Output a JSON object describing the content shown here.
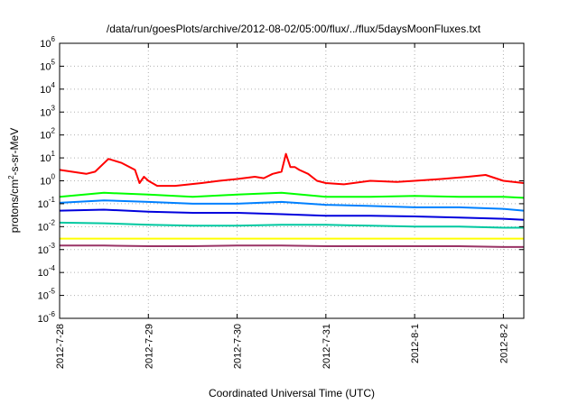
{
  "chart_data": {
    "type": "line",
    "title": "/data/run/goesPlots/archive/2012-08-02/05:00/flux/../flux/5daysMoonFluxes.txt",
    "xlabel": "Coordinated Universal Time (UTC)",
    "ylabel_parts": [
      "protons/cm",
      "2",
      "-s-sr-MeV"
    ],
    "y_scale": "log",
    "ylim": [
      1e-06,
      1000000.0
    ],
    "xlim": [
      0,
      5.23
    ],
    "grid": true,
    "x_ticks": [
      {
        "value": 0,
        "label": "2012-7-28"
      },
      {
        "value": 1,
        "label": "2012-7-29"
      },
      {
        "value": 2,
        "label": "2012-7-30"
      },
      {
        "value": 3,
        "label": "2012-7-31"
      },
      {
        "value": 4,
        "label": "2012-8-1"
      },
      {
        "value": 5,
        "label": "2012-8-2"
      }
    ],
    "y_ticks": [
      {
        "value": -6,
        "base": "10",
        "exp": "-6"
      },
      {
        "value": -5,
        "base": "10",
        "exp": "-5"
      },
      {
        "value": -4,
        "base": "10",
        "exp": "-4"
      },
      {
        "value": -3,
        "base": "10",
        "exp": "-3"
      },
      {
        "value": -2,
        "base": "10",
        "exp": "-2"
      },
      {
        "value": -1,
        "base": "10",
        "exp": "-1"
      },
      {
        "value": 0,
        "base": "10",
        "exp": "0"
      },
      {
        "value": 1,
        "base": "10",
        "exp": "1"
      },
      {
        "value": 2,
        "base": "10",
        "exp": "2"
      },
      {
        "value": 3,
        "base": "10",
        "exp": "3"
      },
      {
        "value": 4,
        "base": "10",
        "exp": "4"
      },
      {
        "value": 5,
        "base": "10",
        "exp": "5"
      },
      {
        "value": 6,
        "base": "10",
        "exp": "6"
      }
    ],
    "series": [
      {
        "color": "#ff0000",
        "x": [
          0,
          0.3,
          0.4,
          0.55,
          0.7,
          0.85,
          0.9,
          0.95,
          1.0,
          1.1,
          1.3,
          1.6,
          1.8,
          2.0,
          2.2,
          2.3,
          2.4,
          2.5,
          2.55,
          2.6,
          2.65,
          2.7,
          2.8,
          2.9,
          3.0,
          3.2,
          3.5,
          3.8,
          4.0,
          4.3,
          4.6,
          4.8,
          5.0,
          5.23
        ],
        "y": [
          3,
          2,
          2.5,
          9,
          6,
          3,
          0.8,
          1.5,
          1,
          0.6,
          0.6,
          0.8,
          1.0,
          1.2,
          1.5,
          1.3,
          2,
          2.5,
          15,
          4,
          4,
          3,
          2,
          1,
          0.8,
          0.7,
          1.0,
          0.9,
          1.0,
          1.2,
          1.5,
          1.8,
          1.0,
          0.8
        ]
      },
      {
        "color": "#00ff00",
        "x": [
          0,
          0.5,
          1.0,
          1.5,
          2.0,
          2.5,
          3.0,
          3.5,
          4.0,
          4.5,
          5.0,
          5.23
        ],
        "y": [
          0.2,
          0.3,
          0.25,
          0.2,
          0.25,
          0.3,
          0.2,
          0.2,
          0.22,
          0.2,
          0.2,
          0.18
        ]
      },
      {
        "color": "#0080ff",
        "x": [
          0,
          0.5,
          1.0,
          1.5,
          2.0,
          2.5,
          3.0,
          3.5,
          4.0,
          4.5,
          5.0,
          5.23
        ],
        "y": [
          0.11,
          0.14,
          0.12,
          0.1,
          0.1,
          0.12,
          0.09,
          0.08,
          0.07,
          0.07,
          0.06,
          0.05
        ]
      },
      {
        "color": "#0000dd",
        "x": [
          0,
          0.5,
          1.0,
          1.5,
          2.0,
          2.5,
          3.0,
          3.5,
          4.0,
          4.5,
          5.0,
          5.23
        ],
        "y": [
          0.05,
          0.055,
          0.045,
          0.04,
          0.04,
          0.035,
          0.03,
          0.03,
          0.028,
          0.025,
          0.022,
          0.02
        ]
      },
      {
        "color": "#00c8a0",
        "x": [
          0,
          0.5,
          1.0,
          1.5,
          2.0,
          2.5,
          3.0,
          3.5,
          4.0,
          4.5,
          5.0,
          5.23
        ],
        "y": [
          0.015,
          0.014,
          0.012,
          0.011,
          0.011,
          0.012,
          0.012,
          0.011,
          0.01,
          0.01,
          0.009,
          0.009
        ]
      },
      {
        "color": "#ffff00",
        "x": [
          0,
          0.5,
          1.0,
          1.5,
          2.0,
          2.5,
          3.0,
          3.5,
          4.0,
          4.5,
          5.0,
          5.23
        ],
        "y": [
          0.003,
          0.003,
          0.003,
          0.003,
          0.003,
          0.003,
          0.003,
          0.003,
          0.003,
          0.003,
          0.003,
          0.003
        ]
      },
      {
        "color": "#993366",
        "x": [
          0,
          0.5,
          1.0,
          1.5,
          2.0,
          2.5,
          3.0,
          3.5,
          4.0,
          4.5,
          5.0,
          5.23
        ],
        "y": [
          0.0015,
          0.0015,
          0.0014,
          0.0014,
          0.0015,
          0.0015,
          0.0014,
          0.0014,
          0.0014,
          0.0014,
          0.0013,
          0.0013
        ]
      }
    ]
  }
}
